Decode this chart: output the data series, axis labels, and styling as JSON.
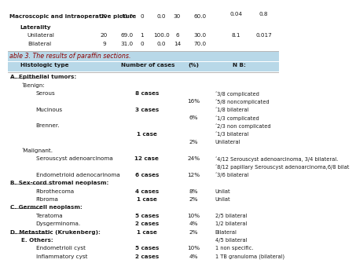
{
  "title": "able 3. The results of paraffin sections.",
  "header_bg": "#b8d8e8",
  "headers": [
    "Histologic type",
    "Number of cases",
    "(%)",
    "N B:"
  ],
  "text_color": "#1a1a1a",
  "font_size": 5.2,
  "top_section": {
    "rows": [
      {
        "label": "Macroscopic and intraoperative picture",
        "indent": 0,
        "bold": true,
        "c1": "20",
        "c2": "40.0",
        "c3": "0",
        "c4": "0.0",
        "c5": "30",
        "c6": "60.0",
        "chi": "",
        "p": ""
      },
      {
        "label": "Laterality",
        "indent": 1,
        "bold": true,
        "c1": "",
        "c2": "",
        "c3": "",
        "c4": "",
        "c5": "",
        "c6": "",
        "chi": "",
        "p": ""
      },
      {
        "label": "Unilateral",
        "indent": 2,
        "bold": false,
        "c1": "20",
        "c2": "69.0",
        "c3": "1",
        "c4": "100.0",
        "c5": "6",
        "c6": "30.0",
        "chi": "8.1",
        "p": "0.017"
      },
      {
        "label": "Bilateral",
        "indent": 2,
        "bold": false,
        "c1": "9",
        "c2": "31.0",
        "c3": "0",
        "c4": "0.0",
        "c5": "14",
        "c6": "70.0",
        "chi": "",
        "p": ""
      }
    ],
    "extra_chi": "0.04",
    "extra_p": "0.8"
  },
  "rows": [
    {
      "col1": "A. Epithelial tumors:",
      "col2": "",
      "col3": "",
      "col4": "",
      "style": "section_underline",
      "indent": 0
    },
    {
      "col1": "ʼBenign:",
      "col2": "",
      "col3": "",
      "col4": "",
      "style": "normal",
      "indent": 1
    },
    {
      "col1": "Serous",
      "col2": "8 cases",
      "col3": "",
      "col4": "ʼ3/8 complicated",
      "style": "normal",
      "indent": 2
    },
    {
      "col1": "",
      "col2": "",
      "col3": "16%",
      "col4": "ʼ5/8 noncomplicated",
      "style": "normal",
      "indent": 2
    },
    {
      "col1": "Mucinous",
      "col2": "3 cases",
      "col3": "",
      "col4": "ʼ1/8 bilateral",
      "style": "normal",
      "indent": 2
    },
    {
      "col1": "",
      "col2": "",
      "col3": "6%",
      "col4": "ʼ1/3 complicated",
      "style": "normal",
      "indent": 2
    },
    {
      "col1": "Brenner.",
      "col2": "",
      "col3": "",
      "col4": "ʼ2/3 non complicated",
      "style": "normal",
      "indent": 2
    },
    {
      "col1": "",
      "col2": "1 case",
      "col3": "",
      "col4": "ʼ1/3 bilateral",
      "style": "normal",
      "indent": 2
    },
    {
      "col1": "",
      "col2": "",
      "col3": "2%",
      "col4": "Unilateral",
      "style": "normal",
      "indent": 2
    },
    {
      "col1": "ʼMalignant.",
      "col2": "",
      "col3": "",
      "col4": "",
      "style": "normal",
      "indent": 1
    },
    {
      "col1": "Serouscyst adenoarcinoma",
      "col2": "12 case",
      "col3": "24%",
      "col4": "ʼ4/12 Serouscyst adenoarcinoma, 3/4 bilateral.",
      "style": "bold",
      "indent": 2
    },
    {
      "col1": "",
      "col2": "",
      "col3": "",
      "col4": "ʼ8/12 papillary Serouscyst adenoarcinoma,6/8 bilat",
      "style": "normal",
      "indent": 2
    },
    {
      "col1": "Endometrioid adenocarinoma",
      "col2": "6 cases",
      "col3": "12%",
      "col4": "ʼ3/6 bilateral",
      "style": "bold",
      "indent": 2
    },
    {
      "col1": "B. Sex-cord stromal neoplasm:",
      "col2": "",
      "col3": "",
      "col4": "",
      "style": "section_underline",
      "indent": 0
    },
    {
      "col1": "Fibrothecoma",
      "col2": "4 cases",
      "col3": "8%",
      "col4": "Unilat",
      "style": "normal",
      "indent": 2
    },
    {
      "col1": "Fibroma",
      "col2": "1 case",
      "col3": "2%",
      "col4": "Unilat",
      "style": "normal",
      "indent": 2
    },
    {
      "col1": "C. Germcell neoplasm:",
      "col2": "",
      "col3": "",
      "col4": "",
      "style": "section_underline",
      "indent": 0
    },
    {
      "col1": "Teratoma",
      "col2": "5 cases",
      "col3": "10%",
      "col4": "2/5 bilateral",
      "style": "normal",
      "indent": 2
    },
    {
      "col1": "Dysgerminoma.",
      "col2": "2 cases",
      "col3": "4%",
      "col4": "1/2 bilateral",
      "style": "normal",
      "indent": 2
    },
    {
      "col1": "D. Metastatic (Krukenberg):",
      "col2": "1 case",
      "col3": "2%",
      "col4": "Bilateral",
      "style": "section_underline",
      "indent": 0
    },
    {
      "col1": "E. Others:",
      "col2": "",
      "col3": "",
      "col4": "4/5 bilateral",
      "style": "section_underline",
      "indent": 1
    },
    {
      "col1": "Endometrioli cyst",
      "col2": "5 cases",
      "col3": "10%",
      "col4": "1 non specific.",
      "style": "bold",
      "indent": 2
    },
    {
      "col1": "Inflammatory cyst",
      "col2": "2 cases",
      "col3": "4%",
      "col4": "1 TB granuloma (bilateral)",
      "style": "bold",
      "indent": 2
    }
  ]
}
